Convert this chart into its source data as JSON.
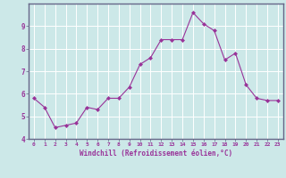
{
  "x": [
    0,
    1,
    2,
    3,
    4,
    5,
    6,
    7,
    8,
    9,
    10,
    11,
    12,
    13,
    14,
    15,
    16,
    17,
    18,
    19,
    20,
    21,
    22,
    23
  ],
  "y": [
    5.8,
    5.4,
    4.5,
    4.6,
    4.7,
    5.4,
    5.3,
    5.8,
    5.8,
    6.3,
    7.3,
    7.6,
    8.4,
    8.4,
    8.4,
    9.6,
    9.1,
    8.8,
    7.5,
    7.8,
    6.4,
    5.8,
    5.7,
    5.7
  ],
  "line_color": "#993399",
  "marker": "D",
  "marker_size": 2.0,
  "bg_color": "#cce8e8",
  "grid_color": "#ffffff",
  "xlabel": "Windchill (Refroidissement éolien,°C)",
  "xlabel_color": "#993399",
  "tick_color": "#993399",
  "spine_color": "#666688",
  "ylim": [
    4,
    10
  ],
  "xlim": [
    -0.5,
    23.5
  ],
  "yticks": [
    4,
    5,
    6,
    7,
    8,
    9
  ],
  "xticks": [
    0,
    1,
    2,
    3,
    4,
    5,
    6,
    7,
    8,
    9,
    10,
    11,
    12,
    13,
    14,
    15,
    16,
    17,
    18,
    19,
    20,
    21,
    22,
    23
  ]
}
